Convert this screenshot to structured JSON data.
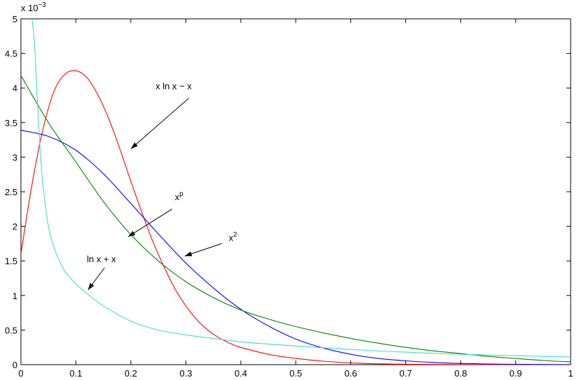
{
  "chart_data": {
    "type": "line",
    "title": "",
    "xlabel": "",
    "ylabel": "",
    "xlim": [
      0,
      1
    ],
    "ylim": [
      0,
      5
    ],
    "y_scale_label": "x 10",
    "y_scale_exponent": "−3",
    "xticks": [
      "0",
      "0.1",
      "0.2",
      "0.3",
      "0.4",
      "0.5",
      "0.6",
      "0.7",
      "0.8",
      "0.9",
      "1"
    ],
    "yticks": [
      "0",
      "0.5",
      "1",
      "1.5",
      "2",
      "2.5",
      "3",
      "3.5",
      "4",
      "4.5",
      "5"
    ],
    "grid": false,
    "series": [
      {
        "color": "#ff0000",
        "x": [
          0,
          0.02,
          0.04,
          0.06,
          0.08,
          0.1,
          0.12,
          0.14,
          0.16,
          0.18,
          0.2,
          0.22,
          0.24,
          0.26,
          0.28,
          0.3,
          0.32,
          0.34,
          0.36,
          0.38,
          0.4,
          0.45,
          0.5,
          0.55,
          0.6,
          0.65,
          0.7,
          0.8,
          0.9,
          1.0
        ],
        "values": [
          1.6,
          2.6,
          3.4,
          3.95,
          4.2,
          4.25,
          4.15,
          3.9,
          3.55,
          3.12,
          2.65,
          2.2,
          1.78,
          1.42,
          1.1,
          0.85,
          0.65,
          0.5,
          0.39,
          0.31,
          0.25,
          0.15,
          0.09,
          0.05,
          0.025,
          0.012,
          0.006,
          0.002,
          0.0005,
          0.0001
        ]
      },
      {
        "color": "#0000ff",
        "x": [
          0,
          0.05,
          0.1,
          0.15,
          0.2,
          0.25,
          0.3,
          0.35,
          0.4,
          0.45,
          0.5,
          0.55,
          0.6,
          0.65,
          0.7,
          0.75,
          0.8,
          0.85,
          0.9,
          0.95,
          1.0
        ],
        "values": [
          3.39,
          3.3,
          3.1,
          2.76,
          2.33,
          1.89,
          1.47,
          1.11,
          0.8,
          0.56,
          0.37,
          0.24,
          0.15,
          0.09,
          0.055,
          0.032,
          0.018,
          0.01,
          0.005,
          0.003,
          0.001
        ]
      },
      {
        "color": "#008000",
        "x": [
          0,
          0.05,
          0.1,
          0.15,
          0.2,
          0.25,
          0.3,
          0.35,
          0.4,
          0.45,
          0.5,
          0.55,
          0.6,
          0.65,
          0.7,
          0.75,
          0.8,
          0.85,
          0.9,
          0.95,
          1.0
        ],
        "values": [
          4.18,
          3.5,
          2.93,
          2.36,
          1.88,
          1.5,
          1.2,
          0.97,
          0.79,
          0.66,
          0.55,
          0.46,
          0.38,
          0.31,
          0.25,
          0.2,
          0.16,
          0.12,
          0.09,
          0.06,
          0.04
        ]
      },
      {
        "color": "#40e0c0",
        "x": [
          0.02,
          0.025,
          0.03,
          0.035,
          0.04,
          0.05,
          0.06,
          0.07,
          0.08,
          0.1,
          0.12,
          0.15,
          0.2,
          0.25,
          0.3,
          0.35,
          0.4,
          0.5,
          0.6,
          0.7,
          0.8,
          0.9,
          1.0
        ],
        "values": [
          5.0,
          4.6,
          3.8,
          3.1,
          2.6,
          2.0,
          1.7,
          1.5,
          1.35,
          1.17,
          1.03,
          0.85,
          0.63,
          0.5,
          0.43,
          0.38,
          0.33,
          0.27,
          0.22,
          0.18,
          0.15,
          0.13,
          0.11
        ]
      }
    ],
    "annotations": [
      {
        "text": "x ln x − x",
        "sup": "",
        "tx": 0.245,
        "ty": 3.98,
        "ax": 0.2,
        "ay": 3.12,
        "sx": 0.305,
        "sy": 3.85
      },
      {
        "text": "x",
        "sup": "p",
        "tx": 0.28,
        "ty": 2.38,
        "ax": 0.195,
        "ay": 1.85,
        "sx": 0.275,
        "sy": 2.25
      },
      {
        "text": "x",
        "sup": "2",
        "tx": 0.378,
        "ty": 1.79,
        "ax": 0.298,
        "ay": 1.57,
        "sx": 0.365,
        "sy": 1.75
      },
      {
        "text": "ln x + x",
        "sup": "",
        "tx": 0.12,
        "ty": 1.48,
        "ax": 0.122,
        "ay": 1.08,
        "sx": 0.152,
        "sy": 1.4
      }
    ]
  }
}
